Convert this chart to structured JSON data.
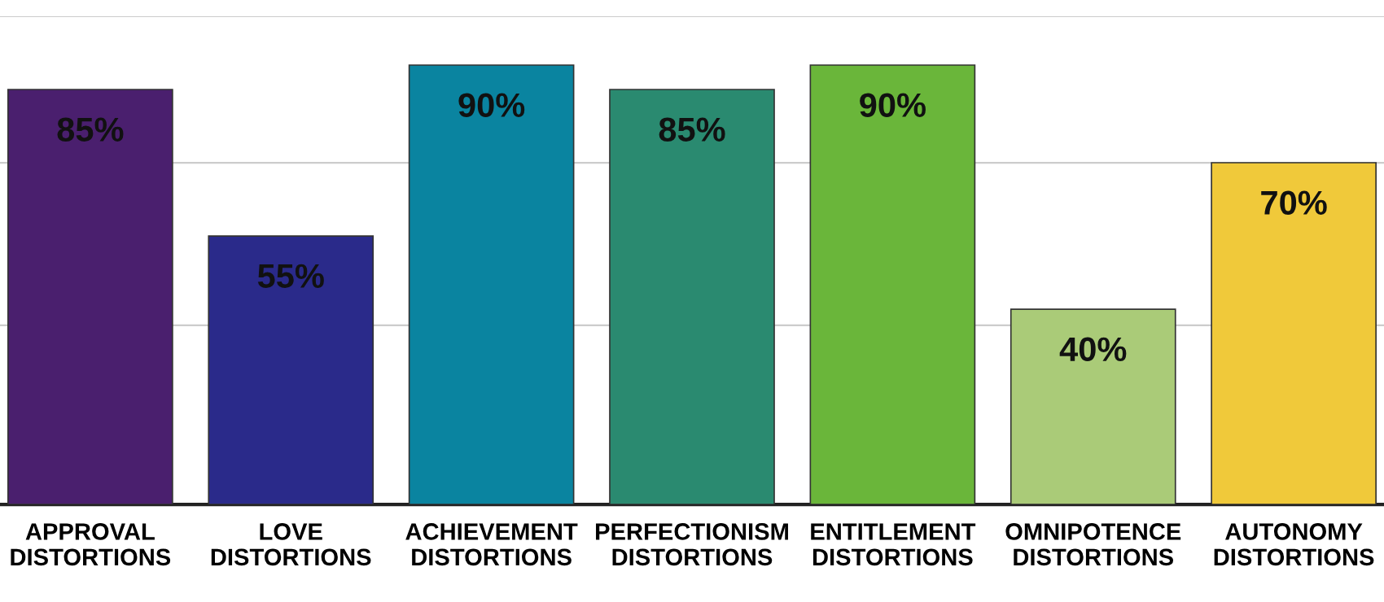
{
  "chart_data": {
    "type": "bar",
    "categories": [
      "APPROVAL\nDISTORTIONS",
      "LOVE\nDISTORTIONS",
      "ACHIEVEMENT\nDISTORTIONS",
      "PERFECTIONISM\nDISTORTIONS",
      "ENTITLEMENT\nDISTORTIONS",
      "OMNIPOTENCE\nDISTORTIONS",
      "AUTONOMY\nDISTORTIONS"
    ],
    "values": [
      85,
      55,
      90,
      85,
      90,
      40,
      70
    ],
    "colors": [
      "#4a1f6e",
      "#2a2a8a",
      "#0a84a0",
      "#2a8a70",
      "#6ab63a",
      "#aacb78",
      "#f0c93a"
    ],
    "value_labels": [
      "85%",
      "55%",
      "90%",
      "85%",
      "90%",
      "40%",
      "70%"
    ],
    "ylim": [
      0,
      100
    ],
    "ref_lines": [
      {
        "axis": "y",
        "value": 36.7,
        "color": "#cccccc"
      },
      {
        "axis": "y",
        "value": 70,
        "color": "#cccccc"
      },
      {
        "axis": "y",
        "value": 100,
        "color": "#cccccc"
      }
    ]
  }
}
